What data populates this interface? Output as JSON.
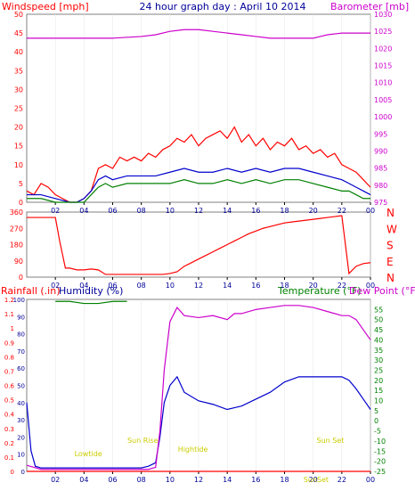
{
  "header": {
    "left_label": "Windspeed [mph]",
    "title": "24 hour graph day : April 10 2014",
    "right_label": "Barometer [mb]"
  },
  "colors": {
    "red": "#ff0000",
    "blue": "#0000cc",
    "green": "#008000",
    "magenta": "#cc00cc",
    "navy": "#000099",
    "yellow": "#cccc00",
    "axis": "#000000",
    "frame": "#808080"
  },
  "chart_data": [
    {
      "type": "line",
      "name": "wind-barometer-panel",
      "x_ticks": [
        "02",
        "04",
        "06",
        "08",
        "10",
        "12",
        "14",
        "16",
        "18",
        "20",
        "22",
        "00"
      ],
      "left_axis": {
        "label": "Windspeed [mph]",
        "range": [
          0,
          50
        ],
        "ticks": [
          "0",
          "5",
          "10",
          "15",
          "20",
          "25",
          "30",
          "35",
          "40",
          "45",
          "50"
        ]
      },
      "right_axis": {
        "label": "Barometer [mb]",
        "range": [
          975,
          1030
        ],
        "ticks": [
          "975",
          "980",
          "985",
          "990",
          "995",
          "1000",
          "1005",
          "1010",
          "1015",
          "1020",
          "1025",
          "1030"
        ]
      },
      "series": [
        {
          "color": "red",
          "axis": "left",
          "x": [
            0,
            0.5,
            1,
            1.5,
            2,
            2.5,
            3,
            3.5,
            4,
            4.5,
            5,
            5.5,
            6,
            6.5,
            7,
            7.5,
            8,
            8.5,
            9,
            9.5,
            10,
            10.5,
            11,
            11.5,
            12,
            12.5,
            13,
            13.5,
            14,
            14.5,
            15,
            15.5,
            16,
            16.5,
            17,
            17.5,
            18,
            18.5,
            19,
            19.5,
            20,
            20.5,
            21,
            21.5,
            22,
            22.5,
            23,
            23.5,
            24
          ],
          "y": [
            3,
            2,
            5,
            4,
            2,
            1,
            0,
            0,
            1,
            3,
            9,
            10,
            9,
            12,
            11,
            12,
            11,
            13,
            12,
            14,
            15,
            17,
            16,
            18,
            15,
            17,
            18,
            19,
            17,
            20,
            16,
            18,
            15,
            17,
            14,
            16,
            15,
            17,
            14,
            15,
            13,
            14,
            12,
            13,
            10,
            9,
            8,
            6,
            4
          ]
        },
        {
          "color": "blue",
          "axis": "left",
          "x": [
            0,
            1,
            2,
            3,
            3.5,
            4,
            4.5,
            5,
            5.5,
            6,
            7,
            8,
            9,
            10,
            11,
            12,
            13,
            14,
            15,
            16,
            17,
            18,
            19,
            20,
            21,
            22,
            22.5,
            23,
            23.5,
            24
          ],
          "y": [
            2,
            2,
            1,
            0,
            0,
            1,
            3,
            6,
            7,
            6,
            7,
            7,
            7,
            8,
            9,
            8,
            8,
            9,
            8,
            9,
            8,
            9,
            9,
            8,
            7,
            6,
            5,
            4,
            3,
            2
          ]
        },
        {
          "color": "green",
          "axis": "left",
          "x": [
            0,
            1,
            2,
            3,
            3.5,
            4,
            4.5,
            5,
            5.5,
            6,
            7,
            8,
            9,
            10,
            11,
            12,
            13,
            14,
            15,
            16,
            17,
            18,
            19,
            20,
            21,
            22,
            22.5,
            23,
            23.5,
            24
          ],
          "y": [
            1,
            1,
            0,
            0,
            0,
            0,
            2,
            4,
            5,
            4,
            5,
            5,
            5,
            5,
            6,
            5,
            5,
            6,
            5,
            6,
            5,
            6,
            6,
            5,
            4,
            3,
            3,
            2,
            1,
            1
          ]
        },
        {
          "color": "magenta",
          "axis": "right",
          "x": [
            0,
            2,
            4,
            6,
            8,
            9,
            10,
            11,
            12,
            13,
            14,
            15,
            16,
            17,
            18,
            19,
            20,
            20.5,
            21,
            22,
            23,
            24
          ],
          "y": [
            1023,
            1023,
            1023,
            1023,
            1023.5,
            1024,
            1025,
            1025.5,
            1025.5,
            1025,
            1024.5,
            1024,
            1023.5,
            1023,
            1023,
            1023,
            1023,
            1023.5,
            1024,
            1024.5,
            1024.5,
            1024.5
          ]
        }
      ]
    },
    {
      "type": "scatter",
      "name": "wind-direction-panel",
      "x_ticks": [
        "02",
        "04",
        "06",
        "08",
        "10",
        "12",
        "14",
        "16",
        "18",
        "20",
        "22",
        "00"
      ],
      "left_axis": {
        "range": [
          0,
          360
        ],
        "ticks": [
          "0",
          "90",
          "180",
          "270",
          "360"
        ]
      },
      "right_axis": {
        "ticks": [
          "N",
          "W",
          "S",
          "E",
          "N"
        ]
      },
      "series": [
        {
          "color": "red",
          "x": [
            0,
            0.5,
            1,
            1.5,
            2,
            2.3,
            2.7,
            3,
            3.5,
            4,
            4.5,
            5,
            5.5,
            6,
            6.5,
            7,
            7.5,
            8,
            8.5,
            9,
            9.5,
            10,
            10.5,
            11,
            11.5,
            12,
            12.5,
            13,
            13.5,
            14,
            14.5,
            15,
            15.5,
            16,
            16.5,
            17,
            17.5,
            18,
            18.5,
            19,
            19.5,
            20,
            20.5,
            21,
            21.5,
            22,
            22.5,
            23,
            23.5,
            24
          ],
          "y": [
            330,
            330,
            330,
            330,
            330,
            200,
            50,
            50,
            40,
            40,
            45,
            40,
            15,
            15,
            15,
            15,
            15,
            15,
            15,
            15,
            15,
            20,
            30,
            60,
            80,
            100,
            120,
            140,
            160,
            180,
            200,
            220,
            240,
            255,
            270,
            280,
            290,
            300,
            305,
            310,
            315,
            320,
            325,
            330,
            335,
            340,
            20,
            60,
            75,
            80
          ]
        }
      ]
    },
    {
      "type": "line",
      "name": "rain-humidity-temperature-panel",
      "labels": {
        "rainfall": "Rainfall (.in)",
        "humidity": "Humidity (%)",
        "temperature": "Temperature (°F)",
        "dewpoint": "Dew Point (°F)"
      },
      "x_ticks": [
        "02",
        "04",
        "06",
        "08",
        "10",
        "12",
        "14",
        "16",
        "18",
        "20",
        "22",
        "00"
      ],
      "left_outer_axis": {
        "label": "Rainfall (.in)",
        "range": [
          0,
          1.2
        ],
        "ticks": [
          "0",
          "0.1",
          "0.2",
          "0.3",
          "0.4",
          "0.5",
          "0.6",
          "0.7",
          "0.8",
          "0.9",
          "1",
          "1.1",
          "1.2"
        ]
      },
      "left_inner_axis": {
        "label": "Humidity (%)",
        "range": [
          0,
          100
        ],
        "ticks": [
          "0",
          "10",
          "20",
          "30",
          "40",
          "50",
          "60",
          "70",
          "80",
          "90",
          "100"
        ]
      },
      "right_axis": {
        "label": "Temperature (°F)",
        "range": [
          -25,
          60
        ],
        "ticks": [
          "-25",
          "-20",
          "-15",
          "-10",
          "-5",
          "0",
          "5",
          "10",
          "15",
          "20",
          "25",
          "30",
          "35",
          "40",
          "45",
          "50",
          "55"
        ]
      },
      "annotations": [
        "Lowtide",
        "Sun Rise",
        "Hightide",
        "Sun Set",
        "SunSet"
      ],
      "series": [
        {
          "color": "blue",
          "axis": "inner",
          "x": [
            0,
            0.3,
            0.6,
            1,
            2,
            3,
            4,
            5,
            6,
            7,
            8,
            8.5,
            9,
            9.3,
            9.6,
            10,
            10.5,
            11,
            12,
            13,
            14,
            14.5,
            15,
            16,
            17,
            18,
            19,
            20,
            21,
            22,
            22.5,
            23,
            23.5,
            24
          ],
          "y": [
            40,
            12,
            3,
            2,
            2,
            2,
            2,
            2,
            2,
            2,
            2,
            3,
            5,
            20,
            40,
            50,
            55,
            46,
            41,
            39,
            36,
            37,
            38,
            42,
            46,
            52,
            55,
            55,
            55,
            55,
            53,
            48,
            42,
            36
          ]
        },
        {
          "color": "magenta",
          "axis": "right",
          "x": [
            0,
            0.5,
            1,
            2,
            4,
            6,
            8,
            8.5,
            9,
            9.3,
            9.6,
            10,
            10.5,
            11,
            12,
            13,
            14,
            14.5,
            15,
            16,
            17,
            18,
            19,
            20,
            21,
            22,
            22.5,
            23,
            23.5,
            24
          ],
          "y": [
            -22,
            -23,
            -24,
            -24,
            -24,
            -24,
            -24,
            -24,
            -23,
            -5,
            25,
            49,
            56,
            52,
            51,
            52,
            50,
            53,
            53,
            55,
            56,
            57,
            57,
            56,
            54,
            52,
            52,
            50,
            45,
            40
          ]
        },
        {
          "color": "green",
          "axis": "right",
          "x": [
            2,
            3,
            4,
            5,
            6,
            7
          ],
          "y": [
            59,
            59,
            58,
            58,
            59,
            59
          ]
        },
        {
          "color": "red",
          "axis": "outer",
          "x": [
            0,
            24
          ],
          "y": [
            0,
            0
          ]
        }
      ]
    }
  ]
}
